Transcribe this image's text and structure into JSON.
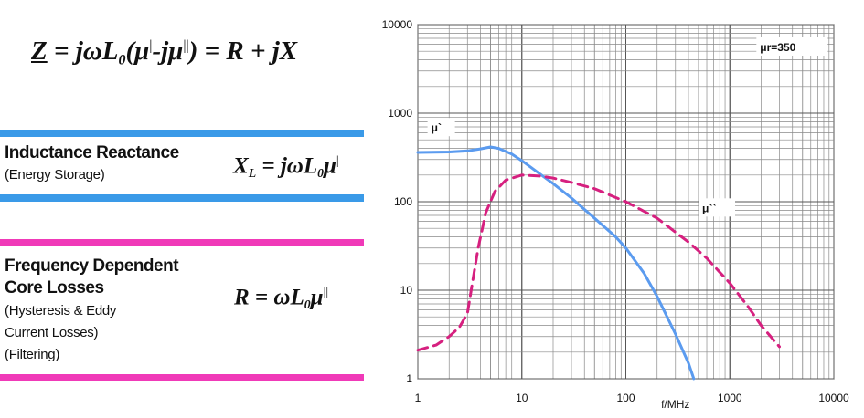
{
  "equations": {
    "main": {
      "Z": "Z",
      "eq1": " = jωL",
      "sub0": "0",
      "paren1": "(μ",
      "p1": "|",
      "mid": "-jμ",
      "p2": "||",
      "tail": ") = R + jX"
    },
    "inductance": {
      "a": "X",
      "sub_l": "L",
      "b": " = jωL",
      "sub0": "0",
      "c": "μ",
      "p": "|"
    },
    "resistance": {
      "a": "R = ωL",
      "sub0": "0",
      "c": "μ",
      "p": "||"
    }
  },
  "sections": {
    "inductance": {
      "title": "Inductance Reactance",
      "sub": "(Energy Storage)"
    },
    "losses": {
      "title1": "Frequency Dependent",
      "title2": "Core Losses",
      "sub1": "(Hysteresis & Eddy",
      "sub2": "Current Losses)",
      "sub3": "(Filtering)"
    }
  },
  "colors": {
    "blue_band": "#3a9ae8",
    "pink_band": "#f03ab8",
    "mu_prime_line": "#5b9bef",
    "mu_double_prime_line": "#d6207f"
  },
  "chart_data": {
    "type": "line",
    "x_scale": "log",
    "y_scale": "log",
    "xlim": [
      1,
      10000
    ],
    "ylim": [
      1,
      10000
    ],
    "xlabel": "f/MHz",
    "ylabel": "",
    "x_ticks": [
      "1",
      "10",
      "100",
      "1000",
      "10000"
    ],
    "y_ticks": [
      "1",
      "10",
      "100",
      "1000",
      "10000"
    ],
    "grid": true,
    "annotation": "μr=350",
    "series": [
      {
        "name": "μ`",
        "style": "solid",
        "x": [
          1,
          2,
          3,
          4,
          5,
          6,
          8,
          10,
          15,
          20,
          30,
          50,
          80,
          100,
          150,
          200,
          300,
          400,
          450
        ],
        "y": [
          360,
          365,
          375,
          395,
          415,
          400,
          345,
          290,
          205,
          160,
          110,
          65,
          40,
          30,
          15.5,
          8.5,
          3.2,
          1.5,
          1.0
        ]
      },
      {
        "name": "μ``",
        "style": "dashed",
        "x": [
          1,
          1.5,
          2,
          2.5,
          3,
          3.3,
          3.8,
          4.5,
          5.5,
          7,
          10,
          15,
          20,
          30,
          50,
          100,
          200,
          400,
          600,
          1000,
          1500,
          2000,
          3000
        ],
        "y": [
          2.1,
          2.4,
          3.0,
          3.8,
          5.5,
          11,
          30,
          75,
          130,
          175,
          200,
          195,
          185,
          165,
          140,
          100,
          65,
          35,
          23,
          12,
          6.5,
          4,
          2.3
        ]
      }
    ]
  }
}
